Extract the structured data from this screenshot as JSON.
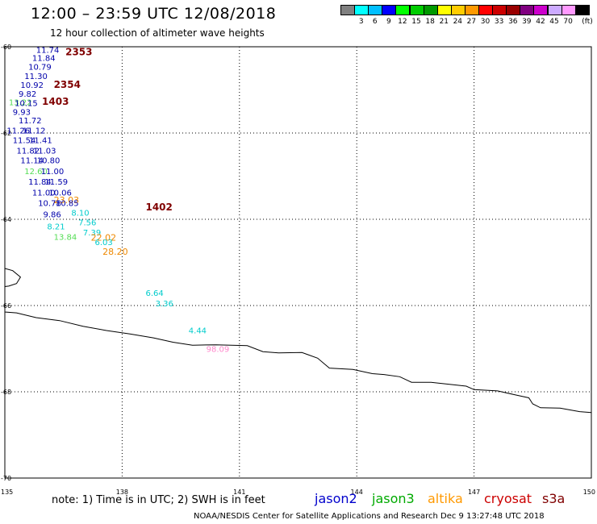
{
  "header": {
    "title": "12:00 – 23:59 UTC 12/08/2018",
    "subtitle": "12 hour collection of altimeter wave heights"
  },
  "colorbar": {
    "unit": "(ft)",
    "bins": [
      {
        "label": "",
        "color": "#808080"
      },
      {
        "label": "3",
        "color": "#00ffff"
      },
      {
        "label": "6",
        "color": "#00bfff"
      },
      {
        "label": "9",
        "color": "#0000ff"
      },
      {
        "label": "12",
        "color": "#00ff00"
      },
      {
        "label": "15",
        "color": "#00cc00"
      },
      {
        "label": "18",
        "color": "#009900"
      },
      {
        "label": "21",
        "color": "#ffff00"
      },
      {
        "label": "24",
        "color": "#ffcc00"
      },
      {
        "label": "27",
        "color": "#ff9900"
      },
      {
        "label": "30",
        "color": "#ff0000"
      },
      {
        "label": "33",
        "color": "#cc0000"
      },
      {
        "label": "36",
        "color": "#990000"
      },
      {
        "label": "39",
        "color": "#800080"
      },
      {
        "label": "42",
        "color": "#cc00cc"
      },
      {
        "label": "45",
        "color": "#ccaaff"
      },
      {
        "label": "70",
        "color": "#ff99ff"
      },
      {
        "label": "",
        "color": "#000000"
      }
    ]
  },
  "axes": {
    "lat_labels": [
      "-60",
      "-62",
      "-64",
      "-66",
      "-68",
      "-70"
    ],
    "lon_labels": [
      "135",
      "138",
      "141",
      "144",
      "147",
      "150"
    ]
  },
  "colors": {
    "jason2": "#0000cc",
    "jason3": "#00aa00",
    "altika": "#ff9900",
    "cryosat": "#cc0000",
    "s3a": "#800000",
    "val_navy": "#0000aa",
    "val_cyan": "#00cccc",
    "val_green": "#55dd55",
    "val_orange": "#ee8800",
    "val_pink": "#ff88cc",
    "time_label": "#800000",
    "coast": "#000000"
  },
  "observations": [
    {
      "lon": 135.8,
      "lat": -60.07,
      "value": "11.74",
      "tone": "navy"
    },
    {
      "lon": 135.7,
      "lat": -60.25,
      "value": "11.84",
      "tone": "navy"
    },
    {
      "lon": 135.6,
      "lat": -60.46,
      "value": "10.79",
      "tone": "navy"
    },
    {
      "lon": 135.5,
      "lat": -60.67,
      "value": "11.30",
      "tone": "navy"
    },
    {
      "lon": 135.4,
      "lat": -60.88,
      "value": "10.92",
      "tone": "navy"
    },
    {
      "lon": 135.35,
      "lat": -61.08,
      "value": "9.82",
      "tone": "navy"
    },
    {
      "lon": 135.1,
      "lat": -61.28,
      "value": "13.22",
      "tone": "green"
    },
    {
      "lon": 135.25,
      "lat": -61.3,
      "value": "10.15",
      "tone": "navy"
    },
    {
      "lon": 135.2,
      "lat": -61.5,
      "value": "9.93",
      "tone": "navy"
    },
    {
      "lon": 135.35,
      "lat": -61.7,
      "value": "11.72",
      "tone": "navy"
    },
    {
      "lon": 135.05,
      "lat": -61.93,
      "value": "11.26",
      "tone": "navy"
    },
    {
      "lon": 135.45,
      "lat": -61.93,
      "value": "11.12",
      "tone": "navy"
    },
    {
      "lon": 135.2,
      "lat": -62.16,
      "value": "11.54",
      "tone": "navy"
    },
    {
      "lon": 135.62,
      "lat": -62.16,
      "value": "11.41",
      "tone": "navy"
    },
    {
      "lon": 135.3,
      "lat": -62.4,
      "value": "11.82",
      "tone": "navy"
    },
    {
      "lon": 135.72,
      "lat": -62.4,
      "value": "11.03",
      "tone": "navy"
    },
    {
      "lon": 135.4,
      "lat": -62.63,
      "value": "11.14",
      "tone": "navy"
    },
    {
      "lon": 135.82,
      "lat": -62.63,
      "value": "10.80",
      "tone": "navy"
    },
    {
      "lon": 135.5,
      "lat": -62.88,
      "value": "12.60",
      "tone": "green"
    },
    {
      "lon": 135.92,
      "lat": -62.88,
      "value": "11.00",
      "tone": "navy"
    },
    {
      "lon": 135.6,
      "lat": -63.12,
      "value": "11.84",
      "tone": "navy"
    },
    {
      "lon": 136.02,
      "lat": -63.12,
      "value": "11.59",
      "tone": "navy"
    },
    {
      "lon": 135.7,
      "lat": -63.37,
      "value": "11.00",
      "tone": "navy"
    },
    {
      "lon": 136.12,
      "lat": -63.37,
      "value": "10.06",
      "tone": "navy"
    },
    {
      "lon": 136.25,
      "lat": -63.55,
      "value": "23.03",
      "tone": "orange"
    },
    {
      "lon": 135.85,
      "lat": -63.62,
      "value": "10.78",
      "tone": "navy"
    },
    {
      "lon": 136.3,
      "lat": -63.62,
      "value": "10.85",
      "tone": "navy"
    },
    {
      "lon": 136.7,
      "lat": -63.84,
      "value": "8.10",
      "tone": "cyan"
    },
    {
      "lon": 135.98,
      "lat": -63.88,
      "value": "9.86",
      "tone": "navy"
    },
    {
      "lon": 136.88,
      "lat": -64.07,
      "value": "7.56",
      "tone": "cyan"
    },
    {
      "lon": 136.08,
      "lat": -64.16,
      "value": "8.21",
      "tone": "cyan"
    },
    {
      "lon": 137.0,
      "lat": -64.3,
      "value": "7.39",
      "tone": "cyan"
    },
    {
      "lon": 137.2,
      "lat": -64.42,
      "value": "22.02",
      "tone": "orange"
    },
    {
      "lon": 136.25,
      "lat": -64.4,
      "value": "13.84",
      "tone": "green"
    },
    {
      "lon": 137.3,
      "lat": -64.52,
      "value": "6.03",
      "tone": "cyan"
    },
    {
      "lon": 137.5,
      "lat": -64.75,
      "value": "28.20",
      "tone": "orange"
    },
    {
      "lon": 138.6,
      "lat": -65.7,
      "value": "6.64",
      "tone": "cyan"
    },
    {
      "lon": 138.85,
      "lat": -65.94,
      "value": "3.36",
      "tone": "cyan"
    },
    {
      "lon": 139.7,
      "lat": -66.57,
      "value": "4.44",
      "tone": "cyan"
    },
    {
      "lon": 140.15,
      "lat": -67.0,
      "value": "98.09",
      "tone": "pink"
    }
  ],
  "time_labels": [
    {
      "lon": 136.55,
      "lat": -60.1,
      "text": "2353"
    },
    {
      "lon": 136.25,
      "lat": -60.86,
      "text": "2354"
    },
    {
      "lon": 135.95,
      "lat": -61.25,
      "text": "1403"
    },
    {
      "lon": 138.6,
      "lat": -63.7,
      "text": "1402"
    }
  ],
  "coastline": [
    [
      135.0,
      -65.14
    ],
    [
      135.2,
      -65.19
    ],
    [
      135.4,
      -65.34
    ],
    [
      135.3,
      -65.49
    ],
    [
      135.1,
      -65.55
    ],
    [
      135.0,
      -65.56
    ],
    [
      135.0,
      -66.15
    ],
    [
      135.3,
      -66.17
    ],
    [
      135.8,
      -66.28
    ],
    [
      136.4,
      -66.35
    ],
    [
      137.0,
      -66.48
    ],
    [
      137.6,
      -66.58
    ],
    [
      138.2,
      -66.66
    ],
    [
      138.8,
      -66.75
    ],
    [
      139.3,
      -66.85
    ],
    [
      139.8,
      -66.92
    ],
    [
      140.4,
      -66.91
    ],
    [
      141.2,
      -66.93
    ],
    [
      141.6,
      -67.07
    ],
    [
      142.0,
      -67.1
    ],
    [
      142.6,
      -67.09
    ],
    [
      143.0,
      -67.22
    ],
    [
      143.3,
      -67.45
    ],
    [
      143.9,
      -67.48
    ],
    [
      144.4,
      -67.58
    ],
    [
      144.7,
      -67.6
    ],
    [
      145.1,
      -67.65
    ],
    [
      145.4,
      -67.78
    ],
    [
      145.9,
      -67.78
    ],
    [
      146.4,
      -67.83
    ],
    [
      146.8,
      -67.87
    ],
    [
      147.0,
      -67.95
    ],
    [
      147.6,
      -67.98
    ],
    [
      148.0,
      -68.06
    ],
    [
      148.4,
      -68.14
    ],
    [
      148.5,
      -68.28
    ],
    [
      148.7,
      -68.37
    ],
    [
      149.2,
      -68.38
    ],
    [
      149.7,
      -68.46
    ],
    [
      150.0,
      -68.48
    ]
  ],
  "footer": {
    "note": "note:  1)  Time is in UTC;  2)  SWH is in feet",
    "credit": "NOAA/NESDIS Center for Satellite Applications and Research   Dec  9 13:27:48 UTC 2018",
    "satellites": [
      {
        "name": "jason2",
        "color": "#0000cc"
      },
      {
        "name": "jason3",
        "color": "#00aa00"
      },
      {
        "name": "altika",
        "color": "#ff9900"
      },
      {
        "name": "cryosat",
        "color": "#cc0000"
      },
      {
        "name": "s3a",
        "color": "#800000"
      }
    ]
  }
}
